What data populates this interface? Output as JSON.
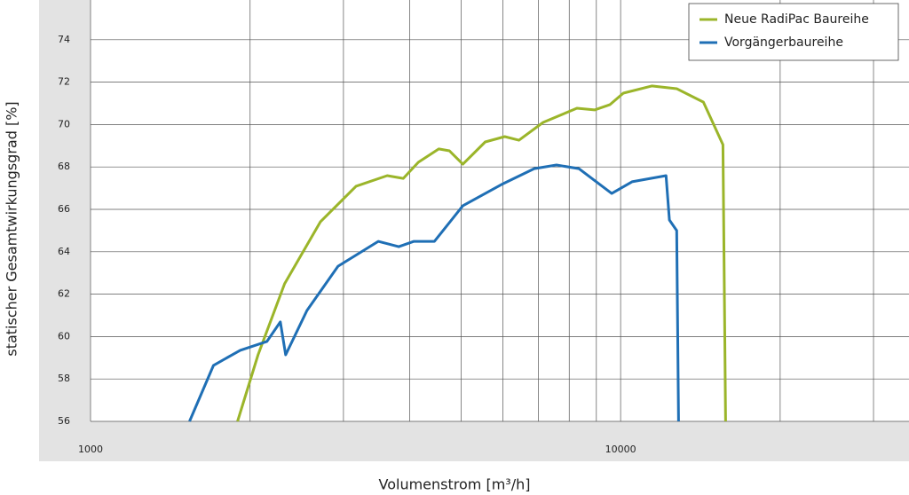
{
  "chart_data": {
    "type": "line",
    "x_label": "Volumenstrom [m³/h]",
    "y_label": "statischer Gesamtwirkungsgrad [%]",
    "x_log": true,
    "xlim": [
      1000,
      35000
    ],
    "xticks": [
      1000,
      10000
    ],
    "xminorticks": [
      2000,
      3000,
      4000,
      5000,
      6000,
      7000,
      8000,
      9000,
      20000,
      30000
    ],
    "ylim": [
      56,
      76
    ],
    "yticks": [
      56,
      58,
      60,
      62,
      64,
      66,
      68,
      70,
      72,
      74
    ],
    "grid": true,
    "legend": "upper right",
    "series": [
      {
        "name": "Neue RadiPac Baureihe",
        "color": "#9bb52a",
        "x": [
          1894,
          2070,
          2323,
          2714,
          3169,
          3628,
          3890,
          4154,
          4540,
          4754,
          5040,
          5553,
          6045,
          6430,
          7140,
          8270,
          8930,
          9550,
          10120,
          11450,
          12760,
          14330,
          15600,
          15780
        ],
        "values": [
          56,
          59.14,
          62.49,
          65.41,
          67.09,
          67.59,
          67.46,
          68.22,
          68.85,
          68.76,
          68.13,
          69.18,
          69.43,
          69.26,
          70.1,
          70.77,
          70.69,
          70.94,
          71.48,
          71.82,
          71.69,
          71.06,
          69.05,
          56
        ]
      },
      {
        "name": "Vorgängerbaureihe",
        "color": "#1f6fb5",
        "x": [
          1537,
          1706,
          1916,
          2152,
          2281,
          2334,
          2560,
          2930,
          3490,
          3815,
          4074,
          4454,
          5040,
          6000,
          6870,
          7570,
          8340,
          9620,
          10510,
          12180,
          12360,
          12760,
          12860
        ],
        "values": [
          56,
          58.64,
          59.35,
          59.77,
          60.69,
          59.14,
          61.23,
          63.32,
          64.49,
          64.24,
          64.49,
          64.49,
          66.17,
          67.21,
          67.92,
          68.09,
          67.92,
          66.75,
          67.3,
          67.59,
          65.5,
          65.0,
          56
        ]
      }
    ]
  }
}
